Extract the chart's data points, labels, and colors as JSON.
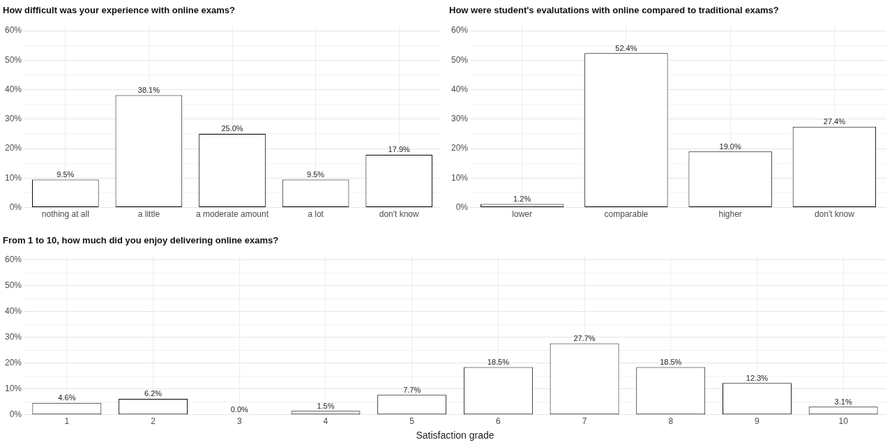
{
  "chart_data": [
    {
      "type": "bar",
      "title": "How difficult was your experience with online exams?",
      "categories": [
        "nothing at all",
        "a little",
        "a moderate amount",
        "a lot",
        "don't know"
      ],
      "values": [
        9.5,
        38.1,
        25.0,
        9.5,
        17.9
      ],
      "value_labels": [
        "9.5%",
        "38.1%",
        "25.0%",
        "9.5%",
        "17.9%"
      ],
      "color": "#ffffff",
      "ylim": [
        0,
        62
      ],
      "yticks": [
        {
          "value": 0,
          "label": "0%"
        },
        {
          "value": 5,
          "label": null
        },
        {
          "value": 10,
          "label": "10%"
        },
        {
          "value": 15,
          "label": null
        },
        {
          "value": 20,
          "label": "20%"
        },
        {
          "value": 25,
          "label": null
        },
        {
          "value": 30,
          "label": "30%"
        },
        {
          "value": 35,
          "label": null
        },
        {
          "value": 40,
          "label": "40%"
        },
        {
          "value": 45,
          "label": null
        },
        {
          "value": 50,
          "label": "50%"
        },
        {
          "value": 55,
          "label": null
        },
        {
          "value": 60,
          "label": "60%"
        }
      ],
      "grid": true,
      "legend": false
    },
    {
      "type": "bar",
      "title": "How were student's evalutations with online compared to traditional exams?",
      "categories": [
        "lower",
        "comparable",
        "higher",
        "don't know"
      ],
      "values": [
        1.2,
        52.4,
        19.0,
        27.4
      ],
      "value_labels": [
        "1.2%",
        "52.4%",
        "19.0%",
        "27.4%"
      ],
      "color": "#ffffff",
      "ylim": [
        0,
        62
      ],
      "yticks": [
        {
          "value": 0,
          "label": "0%"
        },
        {
          "value": 5,
          "label": null
        },
        {
          "value": 10,
          "label": "10%"
        },
        {
          "value": 15,
          "label": null
        },
        {
          "value": 20,
          "label": "20%"
        },
        {
          "value": 25,
          "label": null
        },
        {
          "value": 30,
          "label": "30%"
        },
        {
          "value": 35,
          "label": null
        },
        {
          "value": 40,
          "label": "40%"
        },
        {
          "value": 45,
          "label": null
        },
        {
          "value": 50,
          "label": "50%"
        },
        {
          "value": 55,
          "label": null
        },
        {
          "value": 60,
          "label": "60%"
        }
      ],
      "grid": true,
      "legend": false
    },
    {
      "type": "bar",
      "title": "From 1 to 10, how much did you enjoy delivering online exams?",
      "xlabel": "Satisfaction grade",
      "categories": [
        "1",
        "2",
        "3",
        "4",
        "5",
        "6",
        "7",
        "8",
        "9",
        "10"
      ],
      "values": [
        4.6,
        6.2,
        0.0,
        1.5,
        7.7,
        18.5,
        27.7,
        18.5,
        12.3,
        3.1
      ],
      "value_labels": [
        "4.6%",
        "6.2%",
        "0.0%",
        "1.5%",
        "7.7%",
        "18.5%",
        "27.7%",
        "18.5%",
        "12.3%",
        "3.1%"
      ],
      "color": "#ffffff",
      "ylim": [
        0,
        62
      ],
      "yticks": [
        {
          "value": 0,
          "label": "0%"
        },
        {
          "value": 5,
          "label": null
        },
        {
          "value": 10,
          "label": "10%"
        },
        {
          "value": 15,
          "label": null
        },
        {
          "value": 20,
          "label": "20%"
        },
        {
          "value": 25,
          "label": null
        },
        {
          "value": 30,
          "label": "30%"
        },
        {
          "value": 35,
          "label": null
        },
        {
          "value": 40,
          "label": "40%"
        },
        {
          "value": 45,
          "label": null
        },
        {
          "value": 50,
          "label": "50%"
        },
        {
          "value": 55,
          "label": null
        },
        {
          "value": 60,
          "label": "60%"
        }
      ],
      "grid": true,
      "legend": false
    }
  ]
}
